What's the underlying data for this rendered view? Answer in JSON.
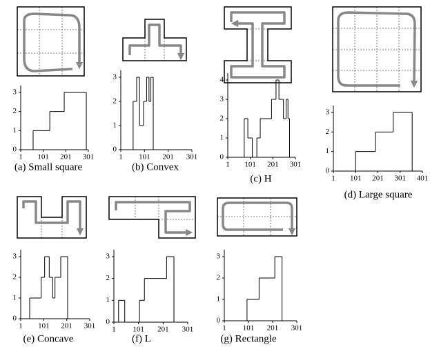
{
  "chart_data": [
    {
      "type": "step",
      "caption": "(a) Small square",
      "x": [
        1,
        56,
        130,
        194,
        292
      ],
      "values": [
        0,
        1,
        2,
        3,
        0
      ],
      "xlim": [
        1,
        301
      ],
      "xticks": [
        1,
        101,
        201,
        301
      ],
      "ylim": [
        0,
        3
      ],
      "yticks": [
        0,
        1,
        2,
        3
      ]
    },
    {
      "type": "step",
      "caption": "(b) Convex",
      "x": [
        1,
        53,
        68,
        80,
        97,
        110,
        120,
        128,
        138
      ],
      "values": [
        0,
        2,
        3,
        1,
        2,
        3,
        2,
        3,
        0
      ],
      "xlim": [
        1,
        301
      ],
      "xticks": [
        1,
        101,
        201,
        301
      ],
      "ylim": [
        0,
        3
      ],
      "yticks": [
        0,
        1,
        2,
        3
      ]
    },
    {
      "type": "step",
      "caption": "(c) H",
      "x": [
        1,
        74,
        90,
        110,
        130,
        145,
        195,
        215,
        228,
        248,
        260,
        268,
        275
      ],
      "values": [
        0,
        2,
        1,
        0,
        1,
        2,
        3,
        4,
        3,
        2,
        3,
        2,
        0
      ],
      "xlim": [
        1,
        301
      ],
      "xticks": [
        1,
        101,
        201,
        301
      ],
      "ylim": [
        0,
        4
      ],
      "yticks": [
        0,
        1,
        2,
        3,
        4
      ]
    },
    {
      "type": "step",
      "caption": "(d) Large square",
      "x": [
        1,
        101,
        190,
        270,
        355
      ],
      "values": [
        0,
        1,
        2,
        3,
        0
      ],
      "xlim": [
        1,
        401
      ],
      "xticks": [
        1,
        101,
        201,
        301,
        401
      ],
      "ylim": [
        0,
        3
      ],
      "yticks": [
        0,
        1,
        2,
        3
      ]
    },
    {
      "type": "step",
      "caption": "(e) Concave",
      "x": [
        1,
        40,
        90,
        105,
        125,
        140,
        150,
        175,
        205
      ],
      "values": [
        0,
        1,
        2,
        3,
        2,
        1,
        2,
        3,
        0
      ],
      "xlim": [
        1,
        301
      ],
      "xticks": [
        1,
        101,
        201,
        301
      ],
      "ylim": [
        0,
        3
      ],
      "yticks": [
        0,
        1,
        2,
        3
      ]
    },
    {
      "type": "step",
      "caption": "(f) L",
      "x": [
        1,
        20,
        45,
        105,
        125,
        215,
        245
      ],
      "values": [
        0,
        1,
        0,
        1,
        2,
        3,
        0
      ],
      "xlim": [
        1,
        301
      ],
      "xticks": [
        1,
        101,
        201,
        301
      ],
      "ylim": [
        0,
        3
      ],
      "yticks": [
        0,
        1,
        2,
        3
      ]
    },
    {
      "type": "step",
      "caption": "(g) Rectangle",
      "x": [
        1,
        95,
        145,
        210,
        240
      ],
      "values": [
        0,
        1,
        2,
        3,
        0
      ],
      "xlim": [
        1,
        301
      ],
      "xticks": [
        1,
        101,
        201,
        301
      ],
      "ylim": [
        0,
        3
      ],
      "yticks": [
        0,
        1,
        2,
        3
      ]
    }
  ]
}
